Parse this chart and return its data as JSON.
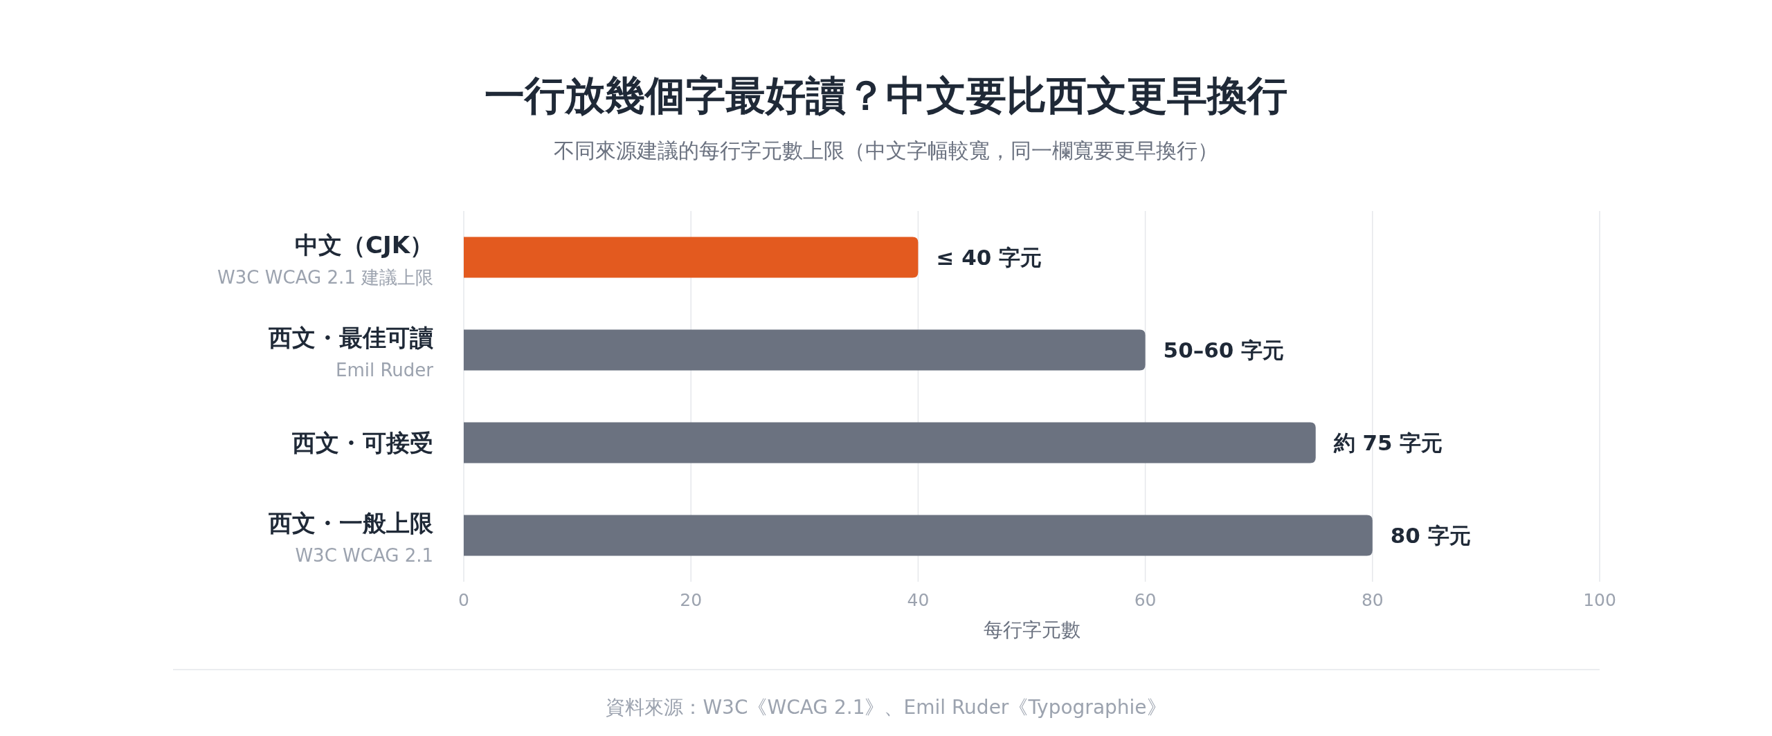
{
  "chart_data": {
    "type": "bar",
    "orientation": "horizontal",
    "title": "一行放幾個字最好讀？中文要比西文更早換行",
    "subtitle": "不同來源建議的每行字元數上限（中文字幅較寬，同一欄寬要更早換行）",
    "categories": [
      "中文（CJK）\nW3C WCAG 2.1 建議上限",
      "西文・最佳可讀\nEmil Ruder",
      "西文・可接受",
      "西文・一般上限\nW3C WCAG 2.1"
    ],
    "values": [
      40,
      60,
      75,
      80
    ],
    "colors": [
      "#e35a1f",
      "#6b7280",
      "#6b7280",
      "#6b7280"
    ],
    "value_labels": [
      "≤ 40 字元",
      "50–60 字元",
      "約 75 字元",
      "80 字元"
    ],
    "xlim": [
      0,
      100
    ],
    "xticks": [
      0,
      20,
      40,
      60,
      80,
      100
    ],
    "xlabel": "每行字元數",
    "grid": "x",
    "annotations": [
      "資料來源：W3C《WCAG 2.1》、Emil Ruder《Typographie》"
    ]
  }
}
